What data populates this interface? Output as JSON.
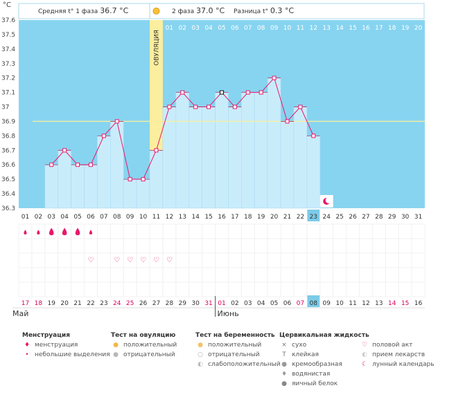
{
  "header": {
    "unit": "°C",
    "phase1_label": "Средняя t° 1 фаза",
    "phase1_value": "36.7 °C",
    "phase2_label": "2 фаза",
    "phase2_value": "37.0 °C",
    "diff_label": "Разница t°",
    "diff_value": "0.3 °C"
  },
  "ovulation_label": "ОВУЛЯЦИЯ",
  "cycle_day_labels": [
    "01",
    "02",
    "03",
    "04",
    "05",
    "06",
    "07",
    "08",
    "09",
    "10",
    "11",
    "12",
    "13",
    "14",
    "15",
    "16",
    "17",
    "18",
    "19",
    "20",
    "21",
    "22",
    "23",
    "24",
    "25",
    "26",
    "27",
    "28",
    "29",
    "30",
    "31"
  ],
  "phase2_day_labels": [
    "01",
    "02",
    "03",
    "04",
    "05",
    "06",
    "07",
    "08",
    "09",
    "10",
    "11",
    "12",
    "13",
    "14",
    "15",
    "16",
    "17",
    "18",
    "19",
    "20"
  ],
  "current_cycle_day": "23",
  "calendar_dates": [
    "17",
    "18",
    "19",
    "20",
    "21",
    "22",
    "23",
    "24",
    "25",
    "26",
    "27",
    "28",
    "29",
    "30",
    "31",
    "01",
    "02",
    "03",
    "04",
    "05",
    "06",
    "07",
    "08",
    "09",
    "10",
    "11",
    "12",
    "13",
    "14",
    "15",
    "16"
  ],
  "calendar_highlight": [
    true,
    true,
    false,
    false,
    false,
    false,
    false,
    true,
    true,
    false,
    false,
    false,
    false,
    false,
    true,
    true,
    false,
    false,
    false,
    false,
    false,
    true,
    false,
    false,
    false,
    false,
    false,
    false,
    true,
    true,
    false
  ],
  "current_date": "08",
  "month1": "Май",
  "month2": "Июнь",
  "chart_data": {
    "type": "bar",
    "title": "",
    "xlabel": "",
    "ylabel": "°C",
    "ylim": [
      36.3,
      37.6
    ],
    "yticks": [
      "36.3",
      "36.4",
      "36.5",
      "36.6",
      "36.7",
      "36.8",
      "36.9",
      "37",
      "37.1",
      "37.2",
      "37.3",
      "37.4",
      "37.5",
      "37.6"
    ],
    "coverline": 36.9,
    "ovulation_day": 11,
    "x": [
      3,
      4,
      5,
      6,
      7,
      8,
      9,
      10,
      11,
      12,
      13,
      14,
      15,
      16,
      17,
      18,
      19,
      20,
      21,
      22,
      23
    ],
    "values": [
      36.6,
      36.7,
      36.6,
      36.6,
      36.8,
      36.9,
      36.5,
      36.5,
      36.7,
      37.0,
      37.1,
      37.0,
      37.0,
      37.1,
      37.0,
      37.1,
      37.1,
      37.2,
      36.9,
      37.0,
      36.8
    ],
    "highlighted_day": 16
  },
  "markers": {
    "menstruation_large": [
      3,
      4,
      5
    ],
    "menstruation_small": [
      1,
      2,
      6
    ],
    "sex_days": [
      6,
      8,
      9,
      10,
      11,
      12
    ],
    "moon_day": 24
  },
  "legend": {
    "groups": [
      {
        "title": "Менструация",
        "items": [
          {
            "label": "менструация",
            "icon": "menstruation-icon"
          },
          {
            "label": "небольшие выделения",
            "icon": "spotting-icon"
          }
        ]
      },
      {
        "title": "Тест на овуляцию",
        "items": [
          {
            "label": "положительный",
            "icon": "positive-test-icon"
          },
          {
            "label": "отрицательный",
            "icon": "negative-test-icon"
          }
        ]
      },
      {
        "title": "Тест на беременность",
        "items": [
          {
            "label": "положительный",
            "icon": "positive-pregnancy-icon"
          },
          {
            "label": "отрицательный",
            "icon": "negative-pregnancy-icon"
          },
          {
            "label": "слабоположительный",
            "icon": "weak-positive-icon"
          }
        ]
      },
      {
        "title": "Цервикальная жидкость",
        "items": [
          {
            "label": "сухо",
            "icon": "dry-icon"
          },
          {
            "label": "клейкая",
            "icon": "sticky-icon"
          },
          {
            "label": "кремообразная",
            "icon": "creamy-icon"
          },
          {
            "label": "водянистая",
            "icon": "watery-icon"
          },
          {
            "label": "яичный белок",
            "icon": "egg-white-icon"
          }
        ]
      },
      {
        "title": "",
        "items": [
          {
            "label": "половой акт",
            "icon": "heart-icon"
          },
          {
            "label": "прием лекарств",
            "icon": "pill-icon"
          },
          {
            "label": "лунный календарь",
            "icon": "moon-icon"
          }
        ]
      }
    ]
  },
  "colors": {
    "plot_bg": "#87d4f0",
    "bar_fill": "#c9ecfb",
    "line": "#e8186c",
    "ovulation": "#fbee9e",
    "coverline": "#f5f0a0",
    "accent_date": "#d9005c",
    "current_day_bg": "#7ccbe8"
  }
}
